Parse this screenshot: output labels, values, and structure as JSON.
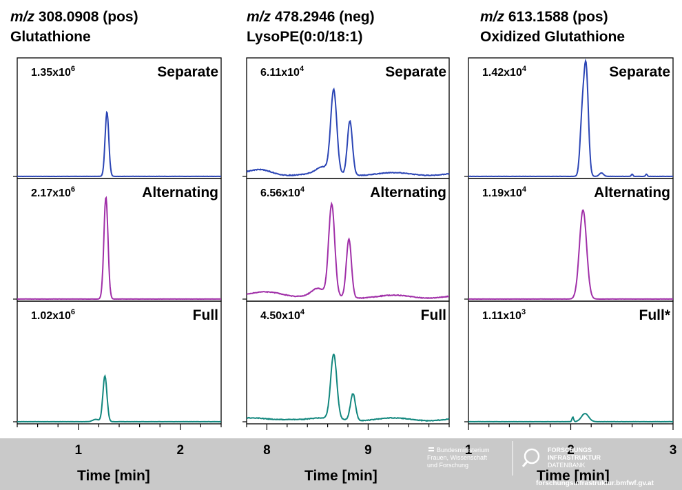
{
  "columns": [
    {
      "mz_prefix": "m/z",
      "mz_value": "308.0908 (pos)",
      "compound": "Glutathione",
      "xlabel": "Time [min]"
    },
    {
      "mz_prefix": "m/z",
      "mz_value": "478.2946 (neg)",
      "compound": "LysoPE(0:0/18:1)",
      "xlabel": "Time [min]"
    },
    {
      "mz_prefix": "m/z",
      "mz_value": "613.1588 (pos)",
      "compound": "Oxidized Glutathione",
      "xlabel": "Time [min]"
    }
  ],
  "colors": {
    "separate": "#2b45b5",
    "alternating": "#a02fa8",
    "full": "#12877e",
    "band": "#c9c9c9"
  },
  "logos": {
    "ministry_lines": [
      "Bundesministerium",
      "Frauen, Wissenschaft",
      "und Forschung"
    ],
    "infra_lines": [
      "FORSCHUNGS",
      "INFRASTRUKTUR",
      "DATENBANK"
    ],
    "watermark": "forschungsinfrastruktur.bmfwf.gv.at"
  },
  "chart_data": [
    {
      "type": "line",
      "title": "m/z 308.0908 (pos) Glutathione",
      "xlabel": "Time [min]",
      "xlim": [
        0.4,
        2.4
      ],
      "xticks": [
        1,
        2
      ],
      "panels": [
        {
          "name": "Separate",
          "scale": "1.35x10",
          "exp": "6",
          "peaks": [
            [
              1.28,
              0.56,
              0.018
            ]
          ],
          "baseline": 0.0
        },
        {
          "name": "Alternating",
          "scale": "2.17x10",
          "exp": "6",
          "peaks": [
            [
              1.27,
              0.87,
              0.02
            ]
          ],
          "baseline": 0.0
        },
        {
          "name": "Full",
          "scale": "1.02x10",
          "exp": "6",
          "peaks": [
            [
              1.26,
              0.39,
              0.02
            ],
            [
              1.17,
              0.02,
              0.03
            ]
          ],
          "baseline": 0.0
        }
      ]
    },
    {
      "type": "line",
      "title": "m/z 478.2946 (neg) LysoPE(0:0/18:1)",
      "xlabel": "Time [min]",
      "xlim": [
        7.8,
        9.8
      ],
      "xticks": [
        8,
        9
      ],
      "panels": [
        {
          "name": "Separate",
          "scale": "6.11x10",
          "exp": "4",
          "peaks": [
            [
              8.66,
              0.72,
              0.03
            ],
            [
              8.82,
              0.47,
              0.025
            ],
            [
              8.55,
              0.05,
              0.06
            ],
            [
              7.95,
              0.03,
              0.1
            ]
          ],
          "baseline": 0.03
        },
        {
          "name": "Alternating",
          "scale": "6.56x10",
          "exp": "4",
          "peaks": [
            [
              8.64,
              0.78,
              0.03
            ],
            [
              8.81,
              0.5,
              0.025
            ],
            [
              8.5,
              0.06,
              0.06
            ],
            [
              8.05,
              0.04,
              0.15
            ]
          ],
          "baseline": 0.03
        },
        {
          "name": "Full",
          "scale": "4.50x10",
          "exp": "4",
          "peaks": [
            [
              8.66,
              0.55,
              0.03
            ],
            [
              8.85,
              0.23,
              0.025
            ],
            [
              8.2,
              0.01,
              0.1
            ]
          ],
          "baseline": 0.03
        }
      ]
    },
    {
      "type": "line",
      "title": "m/z 613.1588 (pos) Oxidized Glutathione",
      "xlabel": "Time [min]",
      "xlim": [
        1.0,
        3.0
      ],
      "xticks": [
        1,
        2,
        3
      ],
      "panels": [
        {
          "name": "Separate",
          "scale": "1.42x10",
          "exp": "4",
          "peaks": [
            [
              2.15,
              0.93,
              0.022
            ],
            [
              2.11,
              0.45,
              0.02
            ],
            [
              2.3,
              0.03,
              0.02
            ],
            [
              2.6,
              0.02,
              0.008
            ],
            [
              2.74,
              0.02,
              0.008
            ]
          ],
          "baseline": 0.0
        },
        {
          "name": "Alternating",
          "scale": "1.19x10",
          "exp": "4",
          "peaks": [
            [
              2.12,
              0.76,
              0.035
            ]
          ],
          "baseline": 0.0
        },
        {
          "name": "Full*",
          "scale": "1.11x10",
          "exp": "3",
          "peaks": [
            [
              2.14,
              0.07,
              0.035
            ],
            [
              2.02,
              0.04,
              0.008
            ]
          ],
          "baseline": 0.0
        }
      ]
    }
  ]
}
